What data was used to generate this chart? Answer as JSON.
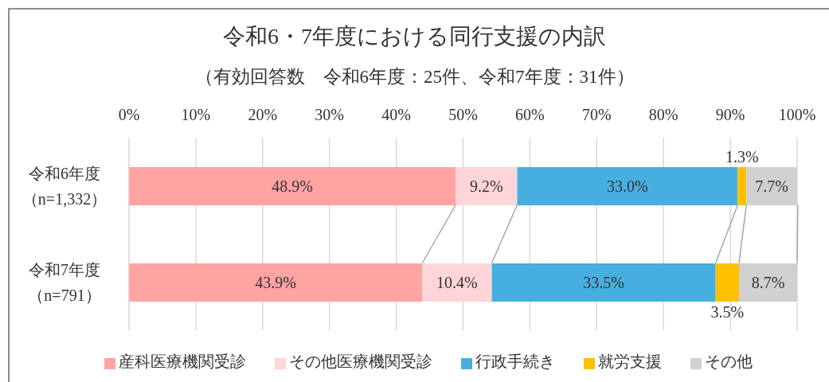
{
  "chart_data": {
    "type": "bar",
    "orientation": "horizontal",
    "stacked": true,
    "title": "令和6・7年度における同行支援の内訳",
    "subtitle": "（有効回答数　令和6年度：25件、令和7年度：31件）",
    "categories": [
      "令和6年度（n=1,332）",
      "令和7年度（n=791）"
    ],
    "series": [
      {
        "name": "産科医療機関受診",
        "color": "#ffa3a3",
        "values": [
          48.9,
          43.9
        ],
        "value_labels": [
          "48.9%",
          "43.9%"
        ]
      },
      {
        "name": "その他医療機関受診",
        "color": "#ffd5d9",
        "values": [
          9.2,
          10.4
        ],
        "value_labels": [
          "9.2%",
          "10.4%"
        ]
      },
      {
        "name": "行政手続き",
        "color": "#47afe0",
        "values": [
          33.0,
          33.5
        ],
        "value_labels": [
          "33.0%",
          "33.5%"
        ]
      },
      {
        "name": "就労支援",
        "color": "#ffc000",
        "values": [
          1.3,
          3.5
        ],
        "value_labels": [
          "1.3%",
          "3.5%"
        ]
      },
      {
        "name": "その他",
        "color": "#d0d0d0",
        "values": [
          7.7,
          8.7
        ],
        "value_labels": [
          "7.7%",
          "8.7%"
        ]
      }
    ],
    "xlim": [
      0,
      100
    ],
    "xticks": [
      {
        "value": 0,
        "label": "0%"
      },
      {
        "value": 10,
        "label": "10%"
      },
      {
        "value": 20,
        "label": "20%"
      },
      {
        "value": 30,
        "label": "30%"
      },
      {
        "value": 40,
        "label": "40%"
      },
      {
        "value": 50,
        "label": "50%"
      },
      {
        "value": 60,
        "label": "60%"
      },
      {
        "value": 70,
        "label": "70%"
      },
      {
        "value": 80,
        "label": "80%"
      },
      {
        "value": 90,
        "label": "90%"
      },
      {
        "value": 100,
        "label": "100%"
      }
    ],
    "grid": "x",
    "legend": "bottom"
  }
}
